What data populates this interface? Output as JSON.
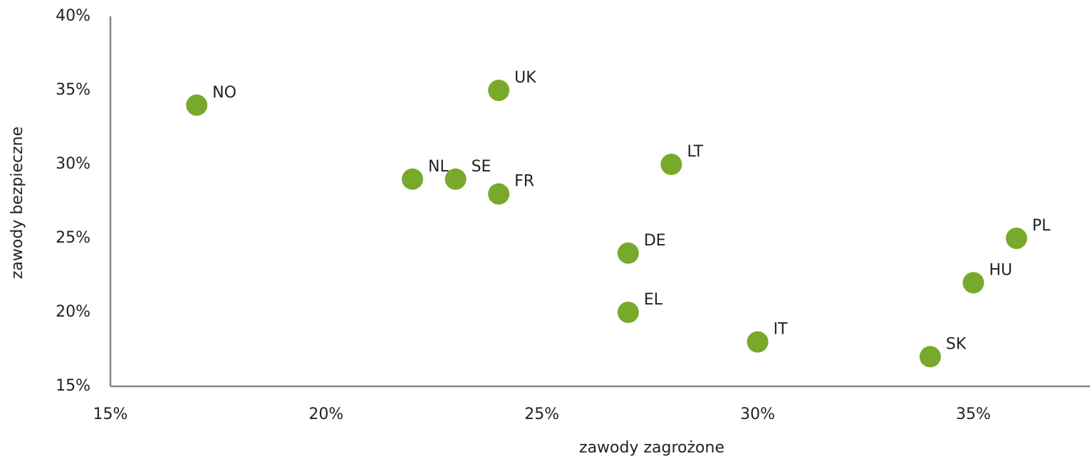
{
  "chart_data": {
    "type": "scatter",
    "x_label": "zawody zagrożone",
    "y_label": "zawody bezpieczne",
    "labels": [
      "NO",
      "UK",
      "NL",
      "SE",
      "FR",
      "LT",
      "DE",
      "EL",
      "IT",
      "SK",
      "HU",
      "PL"
    ],
    "x": [
      17,
      24,
      22,
      23,
      24,
      28,
      27,
      27,
      30,
      34,
      35,
      36
    ],
    "y": [
      34,
      35,
      29,
      29,
      28,
      30,
      24,
      20,
      18,
      17,
      22,
      25
    ],
    "color": "#79a92b",
    "xlim": [
      15,
      37.7
    ],
    "ylim": [
      15,
      40
    ],
    "xticks": [
      {
        "value": 15,
        "label": "15%"
      },
      {
        "value": 20,
        "label": "20%"
      },
      {
        "value": 25,
        "label": "25%"
      },
      {
        "value": 30,
        "label": "30%"
      },
      {
        "value": 35,
        "label": "35%"
      }
    ],
    "yticks": [
      {
        "value": 15,
        "label": "15%"
      },
      {
        "value": 20,
        "label": "20%"
      },
      {
        "value": 25,
        "label": "25%"
      },
      {
        "value": 30,
        "label": "30%"
      },
      {
        "value": 35,
        "label": "35%"
      },
      {
        "value": 40,
        "label": "40%"
      }
    ],
    "grid": false
  }
}
